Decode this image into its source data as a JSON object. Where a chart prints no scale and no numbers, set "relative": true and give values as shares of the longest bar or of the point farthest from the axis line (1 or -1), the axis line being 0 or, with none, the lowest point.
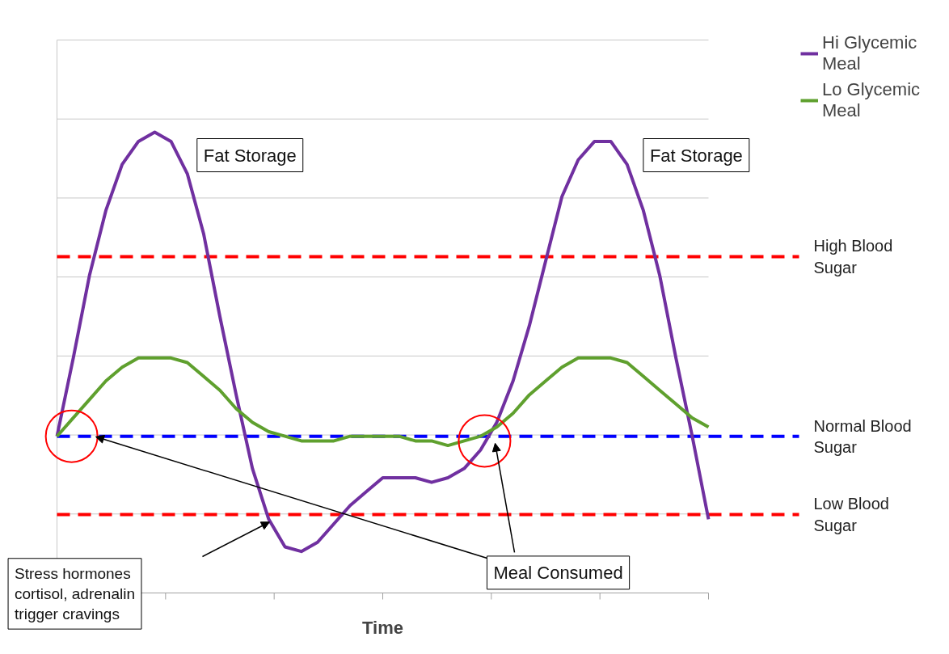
{
  "chart_data": {
    "type": "line",
    "relative": true,
    "xlabel": "Time",
    "tick_labels": false,
    "grid": "y",
    "legend": "top right",
    "line_style": "solid",
    "marker": "none",
    "categories": [
      null,
      null,
      null,
      null,
      null,
      null,
      null,
      null,
      null,
      null,
      null,
      null,
      null,
      null,
      null,
      null,
      null,
      null,
      null,
      null,
      null,
      null,
      null,
      null,
      null,
      null,
      null,
      null,
      null,
      null,
      null,
      null,
      null,
      null,
      null,
      null,
      null,
      null,
      null,
      null,
      null
    ],
    "series": [
      {
        "name": "Hi Glycemic Meal",
        "color": "#7030a0",
        "values": [
          0.34,
          0.51,
          0.69,
          0.83,
          0.93,
          0.98,
          1.0,
          0.98,
          0.91,
          0.78,
          0.6,
          0.43,
          0.27,
          0.16,
          0.1,
          0.09,
          0.11,
          0.15,
          0.19,
          0.22,
          0.25,
          0.25,
          0.25,
          0.24,
          0.25,
          0.27,
          0.31,
          0.37,
          0.46,
          0.58,
          0.72,
          0.86,
          0.94,
          0.98,
          0.98,
          0.93,
          0.83,
          0.69,
          0.51,
          0.34,
          0.16
        ]
      },
      {
        "name": "Lo Glycemic Meal",
        "color": "#5fa02e",
        "values": [
          0.34,
          0.38,
          0.42,
          0.46,
          0.49,
          0.51,
          0.51,
          0.51,
          0.5,
          0.47,
          0.44,
          0.4,
          0.37,
          0.35,
          0.34,
          0.33,
          0.33,
          0.33,
          0.34,
          0.34,
          0.34,
          0.34,
          0.33,
          0.33,
          0.32,
          0.33,
          0.34,
          0.36,
          0.39,
          0.43,
          0.46,
          0.49,
          0.51,
          0.51,
          0.51,
          0.5,
          0.47,
          0.44,
          0.41,
          0.38,
          0.36
        ]
      }
    ],
    "ref_lines": [
      {
        "axis": "y",
        "value": 0.73,
        "label": "High Blood Sugar",
        "color": "#ff0000",
        "line_style": "dashed"
      },
      {
        "axis": "y",
        "value": 0.34,
        "label": "Normal Blood Sugar",
        "color": "#0000ff",
        "line_style": "dashed"
      },
      {
        "axis": "y",
        "value": 0.17,
        "label": "Low Blood Sugar",
        "color": "#ff0000",
        "line_style": "dashed"
      }
    ],
    "annotations": [
      "Fat Storage",
      "Fat Storage",
      "Meal Consumed",
      "Stress hormones cortisol, adrenalin trigger cravings"
    ]
  }
}
